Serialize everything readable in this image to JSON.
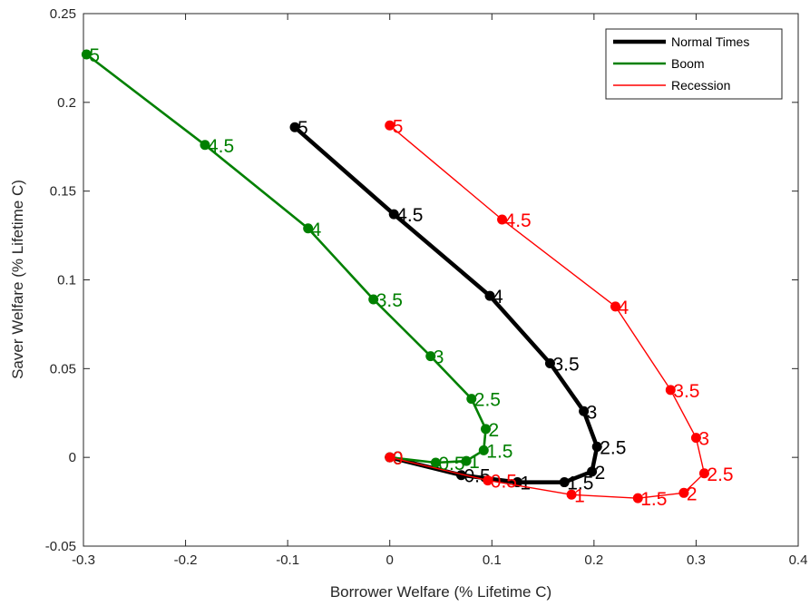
{
  "chart_data": {
    "type": "line",
    "title": "",
    "xlabel": "Borrower Welfare (% Lifetime C)",
    "ylabel": "Saver Welfare (% Lifetime C)",
    "xlim": [
      -0.3,
      0.4
    ],
    "ylim": [
      -0.05,
      0.25
    ],
    "x_ticks": [
      -0.3,
      -0.2,
      -0.1,
      0,
      0.1,
      0.2,
      0.3,
      0.4
    ],
    "x_tick_labels": [
      "-0.3",
      "-0.2",
      "-0.1",
      "0",
      "0.1",
      "0.2",
      "0.3",
      "0.4"
    ],
    "y_ticks": [
      -0.05,
      0,
      0.05,
      0.1,
      0.15,
      0.2,
      0.25
    ],
    "y_tick_labels": [
      "-0.05",
      "0",
      "0.05",
      "0.1",
      "0.15",
      "0.2",
      "0.25"
    ],
    "grid": false,
    "legend_position": "top-right",
    "series": [
      {
        "name": "Normal Times",
        "color": "#000000",
        "linewidth": "thick",
        "points": [
          {
            "label": "0",
            "x": 0.0,
            "y": 0.0
          },
          {
            "label": "0.5",
            "x": 0.07,
            "y": -0.01
          },
          {
            "label": "1",
            "x": 0.125,
            "y": -0.014
          },
          {
            "label": "1.5",
            "x": 0.171,
            "y": -0.014
          },
          {
            "label": "2",
            "x": 0.198,
            "y": -0.008
          },
          {
            "label": "2.5",
            "x": 0.203,
            "y": 0.006
          },
          {
            "label": "3",
            "x": 0.19,
            "y": 0.026
          },
          {
            "label": "3.5",
            "x": 0.157,
            "y": 0.053
          },
          {
            "label": "4",
            "x": 0.098,
            "y": 0.091
          },
          {
            "label": "4.5",
            "x": 0.004,
            "y": 0.137
          },
          {
            "label": "5",
            "x": -0.093,
            "y": 0.186
          }
        ]
      },
      {
        "name": "Boom",
        "color": "#008000",
        "linewidth": "medium",
        "points": [
          {
            "label": "0",
            "x": 0.0,
            "y": 0.0
          },
          {
            "label": "0.5",
            "x": 0.045,
            "y": -0.003
          },
          {
            "label": "1",
            "x": 0.075,
            "y": -0.002
          },
          {
            "label": "1.5",
            "x": 0.092,
            "y": 0.004
          },
          {
            "label": "2",
            "x": 0.094,
            "y": 0.016
          },
          {
            "label": "2.5",
            "x": 0.08,
            "y": 0.033
          },
          {
            "label": "3",
            "x": 0.04,
            "y": 0.057
          },
          {
            "label": "3.5",
            "x": -0.016,
            "y": 0.089
          },
          {
            "label": "4",
            "x": -0.08,
            "y": 0.129
          },
          {
            "label": "4.5",
            "x": -0.181,
            "y": 0.176
          },
          {
            "label": "5",
            "x": -0.297,
            "y": 0.227
          }
        ]
      },
      {
        "name": "Recession",
        "color": "#ff0000",
        "linewidth": "thin",
        "points": [
          {
            "label": "0",
            "x": 0.0,
            "y": 0.0
          },
          {
            "label": "0.5",
            "x": 0.096,
            "y": -0.013
          },
          {
            "label": "1",
            "x": 0.178,
            "y": -0.021
          },
          {
            "label": "1.5",
            "x": 0.243,
            "y": -0.023
          },
          {
            "label": "2",
            "x": 0.288,
            "y": -0.02
          },
          {
            "label": "2.5",
            "x": 0.308,
            "y": -0.009
          },
          {
            "label": "3",
            "x": 0.3,
            "y": 0.011
          },
          {
            "label": "3.5",
            "x": 0.275,
            "y": 0.038
          },
          {
            "label": "4",
            "x": 0.221,
            "y": 0.085
          },
          {
            "label": "4.5",
            "x": 0.11,
            "y": 0.134
          },
          {
            "label": "5",
            "x": 0.0,
            "y": 0.187
          }
        ]
      }
    ]
  }
}
